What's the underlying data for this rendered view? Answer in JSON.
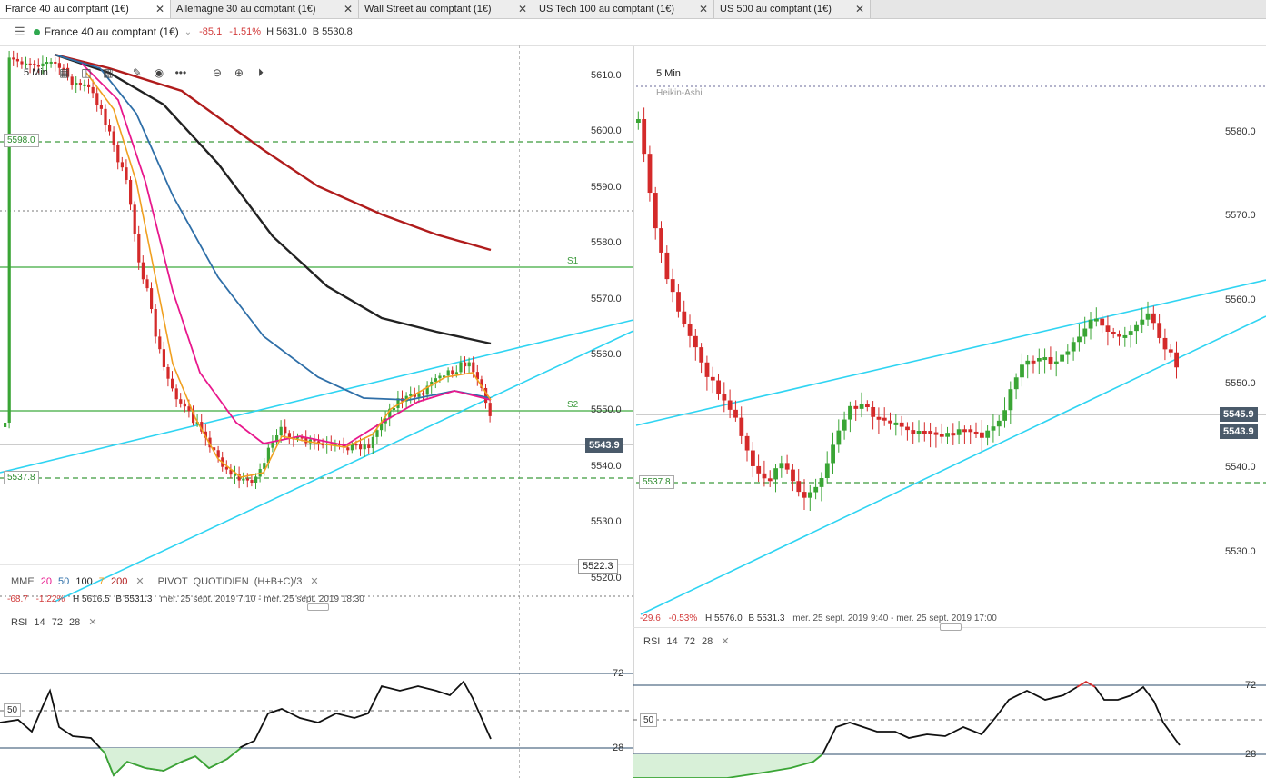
{
  "tabs": [
    {
      "label": "France 40 au comptant (1€)",
      "active": true
    },
    {
      "label": "Allemagne 30 au comptant (1€)",
      "active": false
    },
    {
      "label": "Wall Street au comptant (1€)",
      "active": false
    },
    {
      "label": "US Tech 100 au comptant (1€)",
      "active": false
    },
    {
      "label": "US 500 au comptant (1€)",
      "active": false
    }
  ],
  "close_glyph": "✕",
  "header": {
    "symbol": "France 40 au comptant (1€)",
    "change": "-85.1",
    "change_pct": "-1.51%",
    "high": "H 5631.0",
    "low": "B 5530.8"
  },
  "left": {
    "timeframe": "5 Min",
    "y_labels": [
      "5610.0",
      "5600.0",
      "5590.0",
      "5580.0",
      "5570.0",
      "5560.0",
      "5550.0",
      "5540.0",
      "5530.0",
      "5520.0"
    ],
    "price_tag": "5543.9",
    "low_box": "5522.3",
    "level_tag_598": "5598.0",
    "level_tag_537": "5537.8",
    "s1": "S1",
    "s2": "S2",
    "legend": {
      "mme": "MME",
      "p20": "20",
      "p50": "50",
      "p100": "100",
      "p7": "7",
      "p200": "200",
      "pivot": "PIVOT",
      "daily": "QUOTIDIEN",
      "formula": "(H+B+C)/3"
    },
    "stats": {
      "change": "-68.7",
      "pct": "-1.22%",
      "high": "H 5616.5",
      "low": "B 5531.3",
      "range": "mer. 25 sept. 2019 7:10 - mer. 25 sept. 2019 18:30"
    },
    "rsi": {
      "label": "RSI",
      "p1": "14",
      "p2": "72",
      "p3": "28",
      "upper": "72",
      "mid": "50",
      "lower": "28"
    }
  },
  "right": {
    "timeframe": "5 Min",
    "subtitle": "Heikin-Ashi",
    "y_labels": [
      "5580.0",
      "5570.0",
      "5560.0",
      "5550.0",
      "5540.0",
      "5530.0"
    ],
    "price_tag_1": "5545.9",
    "price_tag_2": "5543.9",
    "level_tag_537": "5537.8",
    "stats": {
      "change": "-29.6",
      "pct": "-0.53%",
      "high": "H 5576.0",
      "low": "B 5531.3",
      "range": "mer. 25 sept. 2019 9:40 - mer. 25 sept. 2019 17:00"
    },
    "rsi": {
      "label": "RSI",
      "p1": "14",
      "p2": "72",
      "p3": "28",
      "upper": "72",
      "mid": "50",
      "lower": "28"
    }
  },
  "colors": {
    "up": "#3aa535",
    "down": "#d42a2a",
    "trend": "#2fd4f2",
    "pivot": "#5fb95f",
    "dash": "#3c9a3c"
  }
}
